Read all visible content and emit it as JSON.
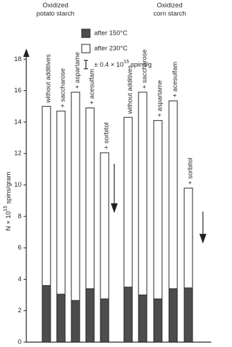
{
  "chart_data": {
    "type": "bar",
    "group_labels": [
      [
        "Oxidized",
        "potato starch"
      ],
      [
        "Oxidized",
        "corn starch"
      ]
    ],
    "categories": [
      "without additives",
      "+ saccharose",
      "+ aspartame",
      "+ acesulfam",
      "+ sorbitol",
      "without additives",
      "+ saccharose",
      "+ aspartame",
      "+ acesulfam",
      "+ sorbitol"
    ],
    "series": [
      {
        "name": "after 230°C",
        "color": "#ffffff",
        "values": [
          15.0,
          14.7,
          15.9,
          14.9,
          12.05,
          14.3,
          15.9,
          14.1,
          15.35,
          9.8
        ]
      },
      {
        "name": "after 150°C",
        "color": "#4d4d4d",
        "values": [
          3.6,
          3.05,
          2.65,
          3.4,
          2.75,
          3.5,
          3.0,
          2.75,
          3.4,
          3.45
        ]
      }
    ],
    "error_legend": [
      "± 0.4 × 10",
      "15",
      " spins/g"
    ],
    "ylabel": [
      "N × 10",
      "15",
      " spins/gram"
    ],
    "ylim": [
      0,
      18.5
    ],
    "yticks": [
      0,
      2,
      4,
      6,
      8,
      10,
      12,
      14,
      16,
      18
    ]
  }
}
